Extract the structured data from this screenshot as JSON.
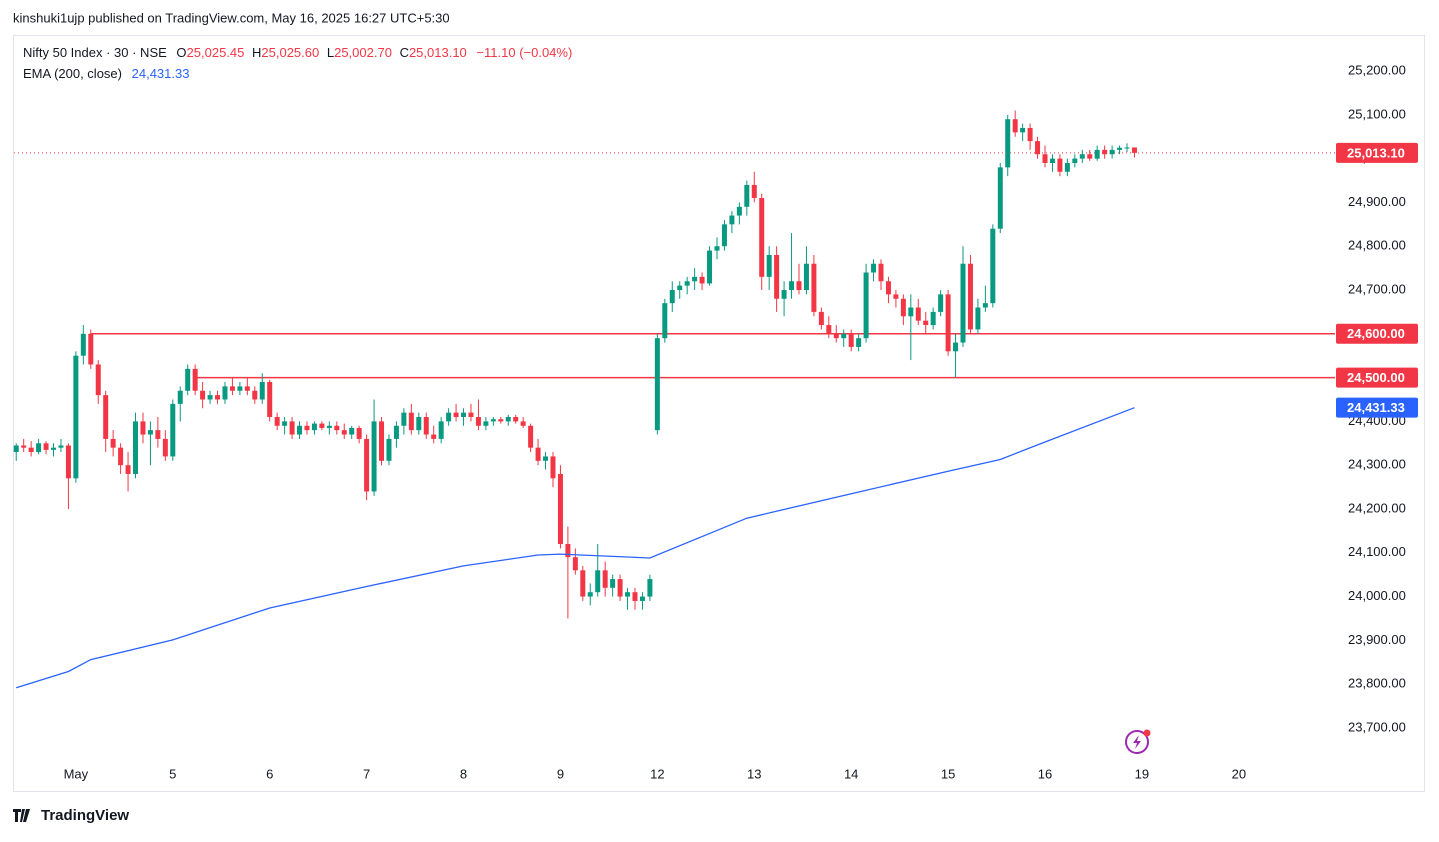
{
  "header": {
    "text": "kinshuki1ujp published on TradingView.com, May 16, 2025 16:27 UTC+5:30"
  },
  "footer": {
    "brand": "TradingView"
  },
  "chart_data": {
    "type": "candlestick",
    "title": "Nifty 50 Index · 30 · NSE",
    "legend": {
      "o_label": "O",
      "o": "25,025.45",
      "h_label": "H",
      "h": "25,025.60",
      "l_label": "L",
      "l": "25,002.70",
      "c_label": "C",
      "c": "25,013.10",
      "change": "−11.10 (−0.04%)"
    },
    "up_color": "#089981",
    "down_color": "#f23645",
    "xlim": [
      -8.3,
      168.9
    ],
    "xticks": [
      {
        "value": 0,
        "label": "May"
      },
      {
        "value": 13,
        "label": "5"
      },
      {
        "value": 26,
        "label": "6"
      },
      {
        "value": 39,
        "label": "7"
      },
      {
        "value": 52,
        "label": "8"
      },
      {
        "value": 65,
        "label": "9"
      },
      {
        "value": 78,
        "label": "12"
      },
      {
        "value": 91,
        "label": "13"
      },
      {
        "value": 104,
        "label": "14"
      },
      {
        "value": 117,
        "label": "15"
      },
      {
        "value": 130,
        "label": "16"
      },
      {
        "value": 143,
        "label": "19"
      },
      {
        "value": 156,
        "label": "20"
      }
    ],
    "ylim": [
      23620,
      25280
    ],
    "yticks": [
      {
        "value": 23700,
        "label": "23,700.00"
      },
      {
        "value": 23800,
        "label": "23,800.00"
      },
      {
        "value": 23900,
        "label": "23,900.00"
      },
      {
        "value": 24000,
        "label": "24,000.00"
      },
      {
        "value": 24100,
        "label": "24,100.00"
      },
      {
        "value": 24200,
        "label": "24,200.00"
      },
      {
        "value": 24300,
        "label": "24,300.00"
      },
      {
        "value": 24400,
        "label": "24,400.00"
      },
      {
        "value": 24500,
        "label": "24,500.00"
      },
      {
        "value": 24600,
        "label": "24,600.00"
      },
      {
        "value": 24700,
        "label": "24,700.00"
      },
      {
        "value": 24800,
        "label": "24,800.00"
      },
      {
        "value": 24900,
        "label": "24,900.00"
      },
      {
        "value": 25000,
        "label": "25,000.00"
      },
      {
        "value": 25100,
        "label": "25,100.00"
      },
      {
        "value": 25200,
        "label": "25,200.00"
      }
    ],
    "candles": [
      [
        -8,
        24330,
        24350,
        24310,
        24345
      ],
      [
        -7,
        24345,
        24360,
        24330,
        24340
      ],
      [
        -6,
        24340,
        24355,
        24320,
        24330
      ],
      [
        -5,
        24330,
        24360,
        24325,
        24350
      ],
      [
        -4,
        24350,
        24355,
        24325,
        24335
      ],
      [
        -3,
        24335,
        24350,
        24320,
        24340
      ],
      [
        -2,
        24340,
        24360,
        24330,
        24345
      ],
      [
        -1,
        24345,
        24350,
        24200,
        24270
      ],
      [
        0,
        24270,
        24560,
        24260,
        24550
      ],
      [
        1,
        24550,
        24620,
        24530,
        24600
      ],
      [
        2,
        24600,
        24610,
        24520,
        24530
      ],
      [
        3,
        24530,
        24540,
        24440,
        24460
      ],
      [
        4,
        24460,
        24470,
        24330,
        24360
      ],
      [
        5,
        24360,
        24380,
        24320,
        24340
      ],
      [
        6,
        24340,
        24350,
        24280,
        24300
      ],
      [
        7,
        24300,
        24330,
        24240,
        24280
      ],
      [
        8,
        24280,
        24420,
        24270,
        24400
      ],
      [
        9,
        24400,
        24420,
        24350,
        24370
      ],
      [
        10,
        24370,
        24400,
        24300,
        24380
      ],
      [
        11,
        24380,
        24410,
        24340,
        24360
      ],
      [
        12,
        24360,
        24380,
        24310,
        24320
      ],
      [
        13,
        24320,
        24450,
        24310,
        24440
      ],
      [
        14,
        24440,
        24480,
        24400,
        24470
      ],
      [
        15,
        24470,
        24530,
        24460,
        24520
      ],
      [
        16,
        24520,
        24530,
        24460,
        24470
      ],
      [
        17,
        24470,
        24490,
        24430,
        24450
      ],
      [
        18,
        24450,
        24470,
        24440,
        24460
      ],
      [
        19,
        24460,
        24470,
        24440,
        24450
      ],
      [
        20,
        24450,
        24490,
        24440,
        24480
      ],
      [
        21,
        24480,
        24500,
        24460,
        24470
      ],
      [
        22,
        24470,
        24490,
        24460,
        24480
      ],
      [
        23,
        24480,
        24500,
        24460,
        24470
      ],
      [
        24,
        24470,
        24480,
        24440,
        24450
      ],
      [
        25,
        24450,
        24510,
        24440,
        24490
      ],
      [
        26,
        24490,
        24495,
        24400,
        24410
      ],
      [
        27,
        24410,
        24420,
        24380,
        24390
      ],
      [
        28,
        24390,
        24410,
        24370,
        24400
      ],
      [
        29,
        24400,
        24410,
        24360,
        24370
      ],
      [
        30,
        24370,
        24400,
        24360,
        24390
      ],
      [
        31,
        24390,
        24400,
        24370,
        24380
      ],
      [
        32,
        24380,
        24400,
        24370,
        24395
      ],
      [
        33,
        24395,
        24400,
        24380,
        24385
      ],
      [
        34,
        24385,
        24400,
        24370,
        24390
      ],
      [
        35,
        24390,
        24400,
        24370,
        24380
      ],
      [
        36,
        24380,
        24395,
        24360,
        24370
      ],
      [
        37,
        24370,
        24390,
        24360,
        24385
      ],
      [
        38,
        24385,
        24390,
        24350,
        24360
      ],
      [
        39,
        24360,
        24370,
        24220,
        24240
      ],
      [
        40,
        24240,
        24450,
        24230,
        24400
      ],
      [
        41,
        24400,
        24410,
        24300,
        24310
      ],
      [
        42,
        24310,
        24370,
        24300,
        24360
      ],
      [
        43,
        24360,
        24400,
        24340,
        24390
      ],
      [
        44,
        24390,
        24430,
        24370,
        24420
      ],
      [
        45,
        24420,
        24440,
        24370,
        24380
      ],
      [
        46,
        24380,
        24420,
        24370,
        24410
      ],
      [
        47,
        24410,
        24420,
        24360,
        24370
      ],
      [
        48,
        24370,
        24390,
        24350,
        24360
      ],
      [
        49,
        24360,
        24410,
        24350,
        24400
      ],
      [
        50,
        24400,
        24430,
        24390,
        24420
      ],
      [
        51,
        24420,
        24440,
        24400,
        24410
      ],
      [
        52,
        24410,
        24430,
        24390,
        24420
      ],
      [
        53,
        24420,
        24440,
        24400,
        24410
      ],
      [
        54,
        24410,
        24450,
        24380,
        24390
      ],
      [
        55,
        24390,
        24410,
        24380,
        24400
      ],
      [
        56,
        24400,
        24410,
        24390,
        24405
      ],
      [
        57,
        24405,
        24410,
        24395,
        24400
      ],
      [
        58,
        24400,
        24415,
        24390,
        24410
      ],
      [
        59,
        24410,
        24415,
        24395,
        24400
      ],
      [
        60,
        24400,
        24410,
        24385,
        24390
      ],
      [
        61,
        24390,
        24395,
        24330,
        24340
      ],
      [
        62,
        24340,
        24360,
        24300,
        24310
      ],
      [
        63,
        24310,
        24330,
        24290,
        24320
      ],
      [
        64,
        24320,
        24330,
        24250,
        24270
      ],
      [
        65,
        24280,
        24300,
        24110,
        24120
      ],
      [
        66,
        24120,
        24160,
        23950,
        24090
      ],
      [
        67,
        24090,
        24110,
        24050,
        24060
      ],
      [
        68,
        24060,
        24070,
        23990,
        24000
      ],
      [
        69,
        24000,
        24030,
        23980,
        24010
      ],
      [
        70,
        24010,
        24120,
        24000,
        24060
      ],
      [
        71,
        24060,
        24080,
        24000,
        24020
      ],
      [
        72,
        24020,
        24050,
        24000,
        24040
      ],
      [
        73,
        24040,
        24050,
        23990,
        24000
      ],
      [
        74,
        24000,
        24020,
        23970,
        24010
      ],
      [
        75,
        24010,
        24020,
        23970,
        23990
      ],
      [
        76,
        23990,
        24010,
        23970,
        24000
      ],
      [
        77,
        24000,
        24050,
        23990,
        24040
      ],
      [
        78,
        24380,
        24600,
        24370,
        24590
      ],
      [
        79,
        24590,
        24680,
        24580,
        24670
      ],
      [
        80,
        24670,
        24720,
        24650,
        24700
      ],
      [
        81,
        24700,
        24720,
        24680,
        24710
      ],
      [
        82,
        24710,
        24730,
        24690,
        24720
      ],
      [
        83,
        24720,
        24750,
        24700,
        24730
      ],
      [
        84,
        24730,
        24740,
        24700,
        24715
      ],
      [
        85,
        24715,
        24800,
        24710,
        24790
      ],
      [
        86,
        24790,
        24820,
        24770,
        24800
      ],
      [
        87,
        24800,
        24860,
        24790,
        24850
      ],
      [
        88,
        24850,
        24880,
        24830,
        24870
      ],
      [
        89,
        24870,
        24900,
        24850,
        24890
      ],
      [
        90,
        24890,
        24950,
        24870,
        24940
      ],
      [
        91,
        24940,
        24970,
        24900,
        24910
      ],
      [
        92,
        24910,
        24920,
        24700,
        24730
      ],
      [
        93,
        24730,
        24800,
        24700,
        24780
      ],
      [
        94,
        24780,
        24800,
        24650,
        24680
      ],
      [
        95,
        24680,
        24720,
        24640,
        24700
      ],
      [
        96,
        24700,
        24830,
        24680,
        24720
      ],
      [
        97,
        24720,
        24760,
        24690,
        24700
      ],
      [
        98,
        24700,
        24800,
        24690,
        24760
      ],
      [
        99,
        24760,
        24780,
        24640,
        24650
      ],
      [
        100,
        24650,
        24660,
        24610,
        24620
      ],
      [
        101,
        24620,
        24640,
        24590,
        24600
      ],
      [
        102,
        24600,
        24620,
        24580,
        24590
      ],
      [
        103,
        24590,
        24610,
        24570,
        24600
      ],
      [
        104,
        24600,
        24610,
        24560,
        24570
      ],
      [
        105,
        24570,
        24600,
        24560,
        24590
      ],
      [
        106,
        24590,
        24760,
        24580,
        24740
      ],
      [
        107,
        24740,
        24770,
        24720,
        24760
      ],
      [
        108,
        24760,
        24770,
        24700,
        24720
      ],
      [
        109,
        24720,
        24730,
        24670,
        24690
      ],
      [
        110,
        24690,
        24700,
        24660,
        24680
      ],
      [
        111,
        24680,
        24690,
        24620,
        24640
      ],
      [
        112,
        24640,
        24690,
        24540,
        24660
      ],
      [
        113,
        24660,
        24680,
        24620,
        24630
      ],
      [
        114,
        24630,
        24650,
        24600,
        24620
      ],
      [
        115,
        24620,
        24660,
        24610,
        24650
      ],
      [
        116,
        24650,
        24700,
        24640,
        24690
      ],
      [
        117,
        24690,
        24700,
        24550,
        24560
      ],
      [
        118,
        24560,
        24600,
        24500,
        24580
      ],
      [
        119,
        24580,
        24800,
        24570,
        24760
      ],
      [
        120,
        24760,
        24780,
        24600,
        24610
      ],
      [
        121,
        24610,
        24680,
        24600,
        24660
      ],
      [
        122,
        24660,
        24710,
        24650,
        24670
      ],
      [
        123,
        24670,
        24850,
        24660,
        24840
      ],
      [
        124,
        24840,
        24990,
        24830,
        24980
      ],
      [
        125,
        24980,
        25100,
        24960,
        25090
      ],
      [
        126,
        25090,
        25110,
        25050,
        25060
      ],
      [
        127,
        25060,
        25080,
        25040,
        25070
      ],
      [
        128,
        25070,
        25080,
        25020,
        25040
      ],
      [
        129,
        25040,
        25050,
        25000,
        25010
      ],
      [
        130,
        25010,
        25030,
        24980,
        24990
      ],
      [
        131,
        24990,
        25010,
        24970,
        25000
      ],
      [
        132,
        25000,
        25010,
        24960,
        24970
      ],
      [
        133,
        24970,
        25000,
        24960,
        24990
      ],
      [
        134,
        24990,
        25010,
        24980,
        25000
      ],
      [
        135,
        25000,
        25020,
        24990,
        25010
      ],
      [
        136,
        25010,
        25020,
        24995,
        25000
      ],
      [
        137,
        25000,
        25030,
        24995,
        25020
      ],
      [
        138,
        25020,
        25030,
        25000,
        25010
      ],
      [
        139,
        25010,
        25030,
        25000,
        25020
      ],
      [
        140,
        25020,
        25030,
        25010,
        25025
      ],
      [
        141,
        25025,
        25035,
        25015,
        25025.45
      ],
      [
        142,
        25025.45,
        25025.6,
        25002.7,
        25013.1
      ]
    ],
    "last_price": {
      "value": 25013.1,
      "label": "25,013.10",
      "color": "#f23645"
    },
    "hlines": [
      {
        "value": 24600,
        "label": "24,600.00",
        "from": 2,
        "color": "#f23645"
      },
      {
        "value": 24500,
        "label": "24,500.00",
        "from": 16,
        "color": "#f23645"
      }
    ],
    "ema": {
      "name": "EMA (200, close)",
      "value_label": "24,431.33",
      "color": "#2962ff",
      "x": [
        -8,
        -1,
        2,
        13,
        26,
        39,
        52,
        62,
        65,
        77,
        90,
        104,
        117,
        124,
        130,
        142
      ],
      "values": [
        23792,
        23829,
        23856,
        23901,
        23974,
        24023,
        24070,
        24095,
        24097,
        24088,
        24179,
        24235,
        24286,
        24313,
        24353,
        24431.33
      ]
    }
  }
}
